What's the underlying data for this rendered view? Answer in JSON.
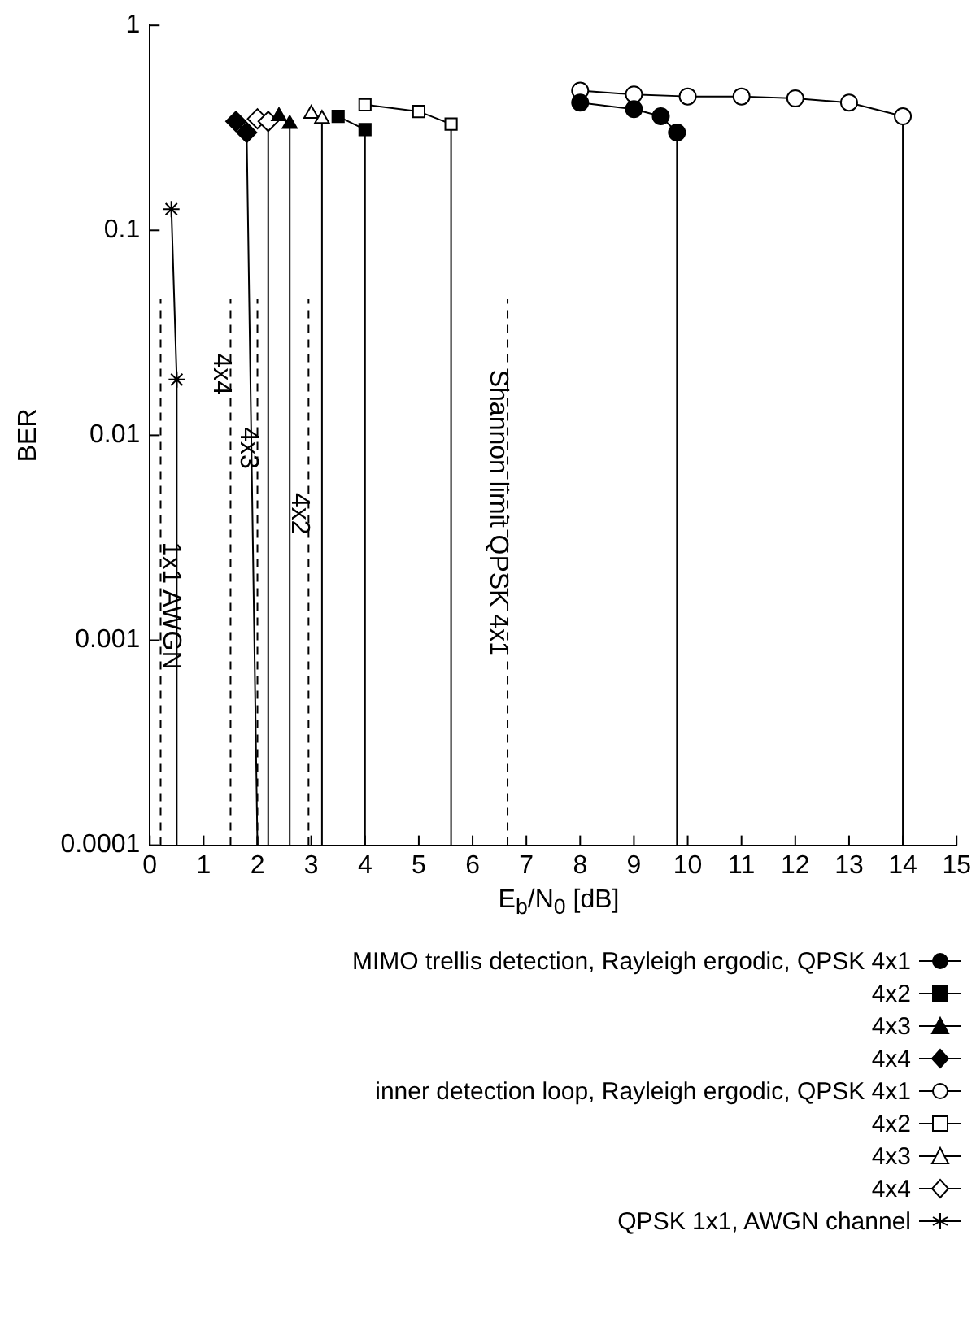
{
  "chart_data": {
    "type": "line",
    "xlabel": "E$_{b}$/N$_{0}$ [dB]",
    "ylabel": "BER",
    "log": "y",
    "xlim": [
      0,
      15
    ],
    "xticks": [
      0,
      1,
      2,
      3,
      4,
      5,
      6,
      7,
      8,
      9,
      10,
      11,
      12,
      13,
      14,
      15
    ],
    "ylim": [
      0.0001,
      1
    ],
    "yticks": [
      {
        "value": 0.0001,
        "label": "0.0001"
      },
      {
        "value": 0.001,
        "label": "0.001"
      },
      {
        "value": 0.01,
        "label": "0.01"
      },
      {
        "value": 0.1,
        "label": "0.1"
      },
      {
        "value": 1,
        "label": "1"
      }
    ],
    "grid": false,
    "legend": "bottom",
    "line_style": "solid",
    "series": [
      {
        "name": "MIMO trellis detection, Rayleigh ergodic, QPSK 4x1",
        "color": "#000000",
        "marker": "circle",
        "x": [
          8,
          9,
          9.5,
          9.8,
          9.8
        ],
        "values": [
          0.42,
          0.39,
          0.36,
          0.3,
          0.0001
        ]
      },
      {
        "name": "4x2",
        "color": "#000000",
        "marker": "square",
        "x": [
          3.5,
          4,
          4
        ],
        "values": [
          0.36,
          0.31,
          0.0001
        ]
      },
      {
        "name": "4x3",
        "color": "#000000",
        "marker": "triangle",
        "x": [
          2.4,
          2.6,
          2.6
        ],
        "values": [
          0.36,
          0.33,
          0.0001
        ]
      },
      {
        "name": "4x4",
        "color": "#000000",
        "marker": "diamond",
        "x": [
          1.6,
          1.8,
          2
        ],
        "values": [
          0.34,
          0.3,
          0.0001
        ]
      },
      {
        "name": "inner detection loop, Rayleigh ergodic, QPSK 4x1",
        "color": "#000000",
        "colors": [
          "#ffffff",
          "#ffffff",
          "#ffffff",
          "#ffffff",
          "#ffffff",
          "#ffffff",
          "#ffffff",
          "#ffffff"
        ],
        "marker": "circle",
        "x": [
          8,
          9,
          10,
          11,
          12,
          13,
          14,
          14
        ],
        "values": [
          0.48,
          0.46,
          0.45,
          0.45,
          0.44,
          0.42,
          0.36,
          0.0001
        ]
      },
      {
        "name": "4x2",
        "color": "#000000",
        "colors": [
          "#ffffff",
          "#ffffff",
          "#ffffff",
          "#ffffff"
        ],
        "marker": "square",
        "x": [
          4,
          5,
          5.6,
          5.6
        ],
        "values": [
          0.41,
          0.38,
          0.33,
          0.0001
        ]
      },
      {
        "name": "4x3",
        "color": "#000000",
        "colors": [
          "#ffffff",
          "#ffffff",
          "#ffffff"
        ],
        "marker": "triangle",
        "x": [
          3,
          3.2,
          3.2
        ],
        "values": [
          0.37,
          0.35,
          0.0001
        ]
      },
      {
        "name": "4x4",
        "color": "#000000",
        "colors": [
          "#ffffff",
          "#ffffff",
          "#ffffff"
        ],
        "marker": "diamond",
        "x": [
          2,
          2.2,
          2.2
        ],
        "values": [
          0.35,
          0.34,
          0.0001
        ]
      },
      {
        "name": "QPSK 1x1, AWGN channel",
        "color": "#000000",
        "marker": "cross",
        "x": [
          0.4,
          0.5,
          0.5
        ],
        "values": [
          0.127,
          0.0187,
          0.0001
        ]
      }
    ],
    "ref_lines": [
      {
        "axis": "x",
        "value": 0.2,
        "label": "1x1 AWGN",
        "line_style": "dashed"
      },
      {
        "axis": "x",
        "value": 1.5,
        "label": "4x4",
        "line_style": "dashed"
      },
      {
        "axis": "x",
        "value": 2,
        "label": "4x3",
        "line_style": "dashed"
      },
      {
        "axis": "x",
        "value": 2.95,
        "label": "4x2",
        "line_style": "dashed"
      },
      {
        "axis": "x",
        "value": 6.65,
        "label": "Shannon limit QPSK 4x1",
        "line_style": "dashed"
      }
    ]
  }
}
